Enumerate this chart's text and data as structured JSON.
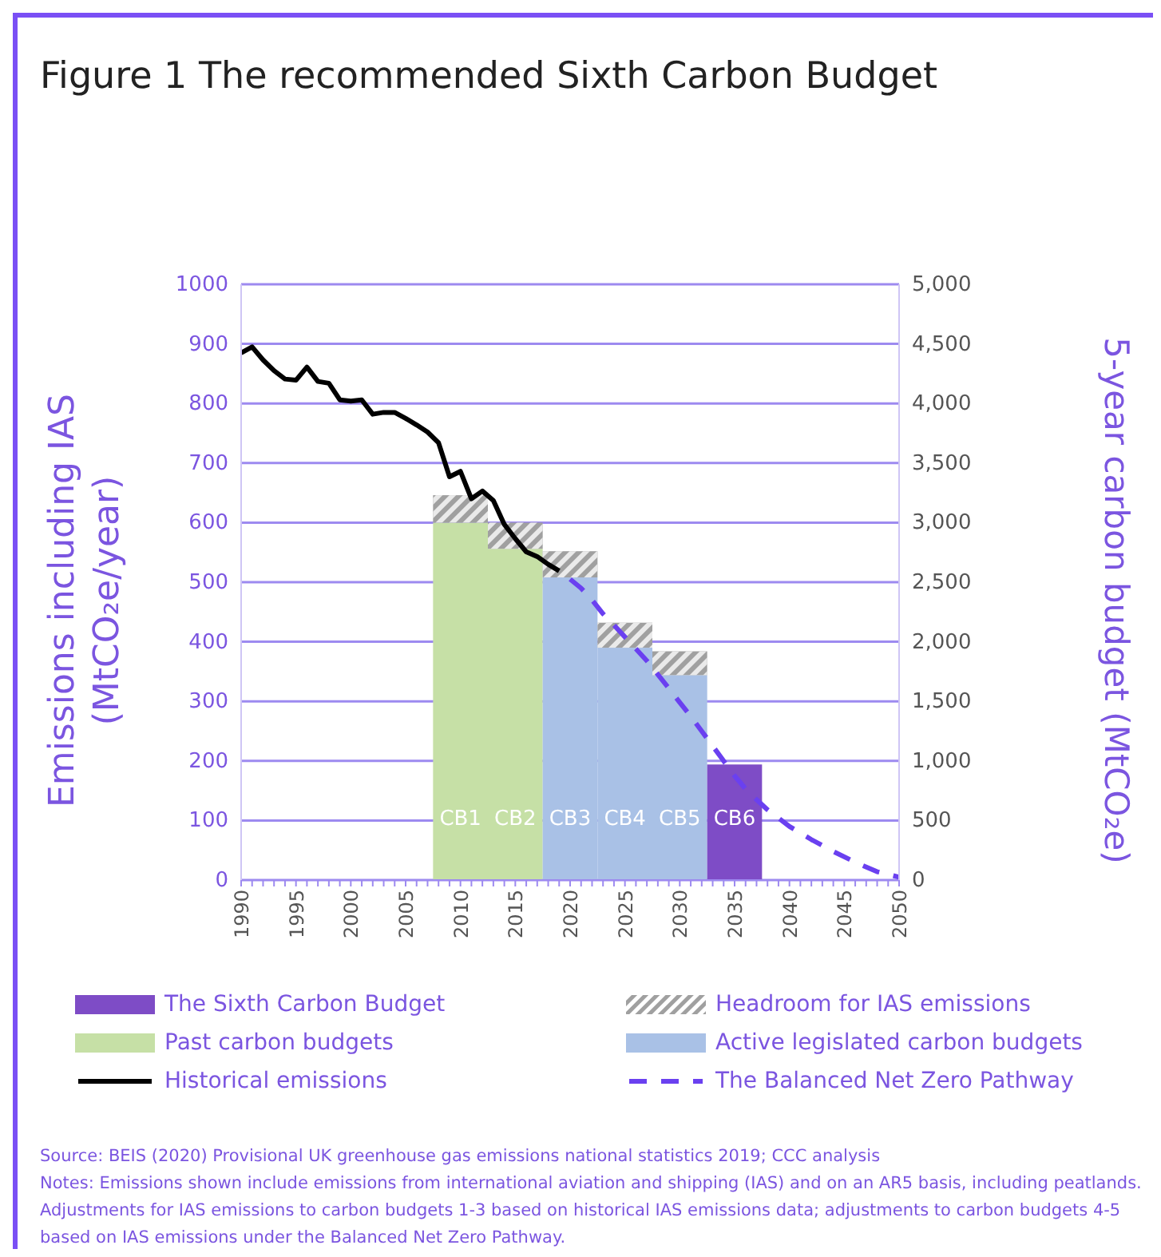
{
  "chart_data": {
    "type": "bar",
    "title": "Figure 1 The recommended Sixth Carbon Budget",
    "ylabel": "Emissions including IAS (MtCO₂e/year)",
    "y2label": "5-year carbon budget (MtCO₂e)",
    "x": [
      2010,
      2015,
      2020,
      2025,
      2030,
      2035
    ],
    "stacked": true,
    "grid": "y",
    "legend": "bottom",
    "xlim": [
      1990,
      2050
    ],
    "xticks": [
      1990,
      {
        "value": 1991,
        "label": null
      },
      {
        "value": 1992,
        "label": null
      },
      {
        "value": 1993,
        "label": null
      },
      {
        "value": 1994,
        "label": null
      },
      1995,
      {
        "value": 1996,
        "label": null
      },
      {
        "value": 1997,
        "label": null
      },
      {
        "value": 1998,
        "label": null
      },
      {
        "value": 1999,
        "label": null
      },
      2000,
      {
        "value": 2001,
        "label": null
      },
      {
        "value": 2002,
        "label": null
      },
      {
        "value": 2003,
        "label": null
      },
      {
        "value": 2004,
        "label": null
      },
      2005,
      {
        "value": 2006,
        "label": null
      },
      {
        "value": 2007,
        "label": null
      },
      {
        "value": 2008,
        "label": null
      },
      {
        "value": 2009,
        "label": null
      },
      2010,
      {
        "value": 2011,
        "label": null
      },
      {
        "value": 2012,
        "label": null
      },
      {
        "value": 2013,
        "label": null
      },
      {
        "value": 2014,
        "label": null
      },
      2015,
      {
        "value": 2016,
        "label": null
      },
      {
        "value": 2017,
        "label": null
      },
      {
        "value": 2018,
        "label": null
      },
      {
        "value": 2019,
        "label": null
      },
      2020,
      {
        "value": 2021,
        "label": null
      },
      {
        "value": 2022,
        "label": null
      },
      {
        "value": 2023,
        "label": null
      },
      {
        "value": 2024,
        "label": null
      },
      2025,
      {
        "value": 2026,
        "label": null
      },
      {
        "value": 2027,
        "label": null
      },
      {
        "value": 2028,
        "label": null
      },
      {
        "value": 2029,
        "label": null
      },
      2030,
      {
        "value": 2031,
        "label": null
      },
      {
        "value": 2032,
        "label": null
      },
      {
        "value": 2033,
        "label": null
      },
      {
        "value": 2034,
        "label": null
      },
      2035,
      {
        "value": 2036,
        "label": null
      },
      {
        "value": 2037,
        "label": null
      },
      {
        "value": 2038,
        "label": null
      },
      {
        "value": 2039,
        "label": null
      },
      2040,
      {
        "value": 2041,
        "label": null
      },
      {
        "value": 2042,
        "label": null
      },
      {
        "value": 2043,
        "label": null
      },
      {
        "value": 2044,
        "label": null
      },
      2045,
      {
        "value": 2046,
        "label": null
      },
      {
        "value": 2047,
        "label": null
      },
      {
        "value": 2048,
        "label": null
      },
      {
        "value": 2049,
        "label": null
      },
      2050
    ],
    "ylim": [
      0,
      1000
    ],
    "yticks": [
      0,
      100,
      200,
      300,
      400,
      500,
      600,
      700,
      800,
      900,
      1000
    ],
    "y2lim": [
      0,
      5000
    ],
    "y2ticks": [
      0,
      500,
      {
        "value": 1000,
        "label": "1,000"
      },
      {
        "value": 1500,
        "label": "1,500"
      },
      {
        "value": 2000,
        "label": "2,000"
      },
      {
        "value": 2500,
        "label": "2,500"
      },
      {
        "value": 3000,
        "label": "3,000"
      },
      {
        "value": 3500,
        "label": "3,500"
      },
      {
        "value": 4000,
        "label": "4,000"
      },
      {
        "value": 4500,
        "label": "4,500"
      },
      {
        "value": 5000,
        "label": "5,000"
      }
    ],
    "series": [
      {
        "name": "Past carbon budgets",
        "color": "#c6e0a6",
        "axis": "y2",
        "values": [
          3000,
          2780,
          null,
          null,
          null,
          null
        ]
      },
      {
        "name": "Active legislated carbon budgets",
        "color": "#a9c1e6",
        "axis": "y2",
        "values": [
          null,
          null,
          2540,
          1950,
          1720,
          null
        ]
      },
      {
        "name": "The Sixth Carbon Budget",
        "color": "#7e4cc6",
        "axis": "y2",
        "values": [
          null,
          null,
          null,
          null,
          null,
          970
        ]
      },
      {
        "name": "Headroom for IAS emissions",
        "color": "#a0a0a0",
        "axis": "y2",
        "values": [
          230,
          220,
          220,
          210,
          200,
          null
        ]
      },
      {
        "name": "Historical emissions",
        "type": "line",
        "color": "#000000",
        "line_style": "solid",
        "x": [
          1990,
          1991,
          1992,
          1993,
          1994,
          1995,
          1996,
          1997,
          1998,
          1999,
          2000,
          2001,
          2002,
          2003,
          2004,
          2005,
          2006,
          2007,
          2008,
          2009,
          2010,
          2011,
          2012,
          2013,
          2014,
          2015,
          2016,
          2017,
          2018,
          2019
        ],
        "values": [
          885,
          895,
          873,
          855,
          841,
          839,
          861,
          837,
          834,
          806,
          804,
          806,
          782,
          785,
          785,
          775,
          764,
          752,
          734,
          677,
          686,
          640,
          653,
          637,
          597,
          573,
          551,
          543,
          530,
          519
        ]
      },
      {
        "name": "The Balanced Net Zero Pathway",
        "type": "line",
        "color": "#6a40f0",
        "line_style": "dashed",
        "x": [
          2020,
          2021,
          2022,
          2023,
          2024,
          2025,
          2026,
          2027,
          2028,
          2029,
          2030,
          2031,
          2032,
          2033,
          2034,
          2035,
          2036,
          2037,
          2038,
          2039,
          2040,
          2042,
          2044,
          2046,
          2048,
          2050
        ],
        "values": [
          505,
          490,
          470,
          447,
          428,
          408,
          388,
          368,
          345,
          322,
          298,
          275,
          250,
          225,
          200,
          175,
          153,
          135,
          118,
          104,
          90,
          68,
          48,
          30,
          14,
          5
        ]
      }
    ],
    "annotations": [
      "CB1",
      "CB2",
      "CB3",
      "CB4",
      "CB5",
      "CB6",
      "Source: BEIS (2020) Provisional UK greenhouse gas emissions national statistics 2019; CCC analysis",
      "Notes: Emissions shown include emissions from international aviation and shipping (IAS) and on an AR5 basis, including peatlands. Adjustments for IAS emissions to carbon budgets 1-3 based on historical IAS emissions data; adjustments to carbon budgets 4-5 based on IAS emissions under the Balanced Net Zero Pathway."
    ]
  }
}
